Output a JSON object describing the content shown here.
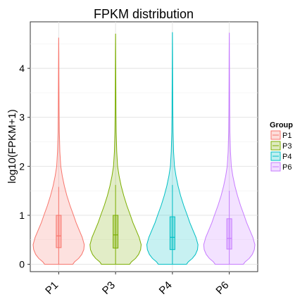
{
  "chart_data": {
    "type": "violin",
    "title": "FPKM distribution",
    "xlabel": "",
    "ylabel": "log10(FPKM+1)",
    "categories": [
      "P1",
      "P3",
      "P4",
      "P6"
    ],
    "ylim": [
      -0.15,
      4.95
    ],
    "yticks": [
      0,
      1,
      2,
      3,
      4
    ],
    "grid": true,
    "legend": {
      "title": "Group",
      "placement": "right",
      "entries": [
        "P1",
        "P3",
        "P4",
        "P6"
      ]
    },
    "colors": {
      "P1": "#F8766D",
      "P3": "#7CAE00",
      "P4": "#00BFC4",
      "P6": "#C77CFF"
    },
    "series": [
      {
        "name": "P1",
        "max": 4.62,
        "q1": 0.34,
        "median": 0.58,
        "q3": 1.0,
        "whisker_low": 0.0,
        "whisker_high": 1.58
      },
      {
        "name": "P3",
        "max": 4.7,
        "q1": 0.33,
        "median": 0.6,
        "q3": 1.0,
        "whisker_low": 0.0,
        "whisker_high": 1.62
      },
      {
        "name": "P4",
        "max": 4.73,
        "q1": 0.3,
        "median": 0.55,
        "q3": 0.97,
        "whisker_low": 0.0,
        "whisker_high": 1.62
      },
      {
        "name": "P6",
        "max": 4.72,
        "q1": 0.31,
        "median": 0.53,
        "q3": 0.93,
        "whisker_low": 0.0,
        "whisker_high": 1.5
      }
    ]
  }
}
